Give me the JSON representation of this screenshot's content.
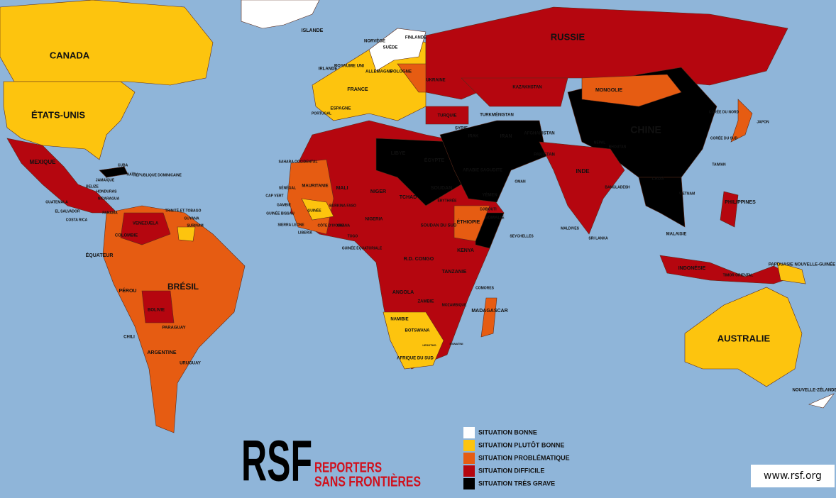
{
  "map": {
    "countries": [
      "CANADA",
      "ÉTATS-UNIS",
      "RUSSIE",
      "CHINE",
      "BRÉSIL",
      "AUSTRALIE",
      "ISLANDE",
      "NORVÈGE",
      "SUÈDE",
      "FINLANDE",
      "ROYAUME UNI",
      "IRLANDE",
      "ALLEMAGNE",
      "POLOGNE",
      "UKRAINE",
      "FRANCE",
      "ESPAGNE",
      "PORTUGAL",
      "TURQUIE",
      "KAZAKHSTAN",
      "MONGOLIE",
      "TURKMÉNISTAN",
      "SYRIE",
      "IRAK",
      "IRAN",
      "AFGHANISTAN",
      "PAKISTAN",
      "NÉPAL",
      "BHOUTAN",
      "INDE",
      "BANGLADESH",
      "LAOS",
      "VIETNAM",
      "CORÉE DU NORD",
      "CORÉE DU SUD",
      "JAPON",
      "TAIWAN",
      "PHILIPPINES",
      "MALAISIE",
      "INDONÉSIE",
      "SRI LANKA",
      "MALDIVES",
      "TIMOR ORIENTAL",
      "PAPOUASIE NOUVELLE-GUINÉE",
      "NOUVELLE-ZÉLANDE",
      "LIBYE",
      "ÉGYPTE",
      "ARABIE SAOUDITE",
      "YÉMEN",
      "OMAN",
      "SOUDAN",
      "ÉRYTHRÉE",
      "DJIBOUTI",
      "SOMALIE",
      "ÉTHIOPIE",
      "KENYA",
      "TANZANIE",
      "R.D. CONGO",
      "ANGOLA",
      "ZAMBIE",
      "MOZAMBIQUE",
      "MADAGASCAR",
      "NAMIBIE",
      "BOTSWANA",
      "AFRIQUE DU SUD",
      "LESOTHO",
      "ESWATINI",
      "COMORES",
      "SEYCHELLES",
      "NIGER",
      "TCHAD",
      "MALI",
      "MAURITANIE",
      "SÉNÉGAL",
      "CAP VERT",
      "GAMBIE",
      "GUINÉE BISSAU",
      "GUINÉE",
      "SIERRA LEONE",
      "LIBERIA",
      "CÔTE D'IVOIRE",
      "GHANA",
      "TOGO",
      "BURKINA FASO",
      "NIGERIA",
      "SOUDAN DU SUD",
      "GUINÉE ÉQUATORIALE",
      "SAHARA OCCIDENTAL",
      "MEXIQUE",
      "CUBA",
      "HAÏTI",
      "RÉPUBLIQUE DOMINICAINE",
      "JAMAÏQUE",
      "BELIZE",
      "HONDURAS",
      "NICARAGUA",
      "GUATEMALA",
      "EL SALVADOR",
      "COSTA RICA",
      "PANAMA",
      "TRINITÉ-ET-TOBAGO",
      "GUYANA",
      "SURINAM",
      "VENEZUELA",
      "COLOMBIE",
      "ÉQUATEUR",
      "PÉROU",
      "BOLIVIE",
      "PARAGUAY",
      "CHILI",
      "ARGENTINE",
      "URUGUAY"
    ],
    "legend": {
      "items": [
        {
          "label": "SITUATION BONNE",
          "color": "#ffffff"
        },
        {
          "label": "SITUATION PLUTÔT BONNE",
          "color": "#fdc40e"
        },
        {
          "label": "SITUATION PROBLÉMATIQUE",
          "color": "#e65c12"
        },
        {
          "label": "SITUATION DIFFICILE",
          "color": "#b5060f"
        },
        {
          "label": "SITUATION TRÈS GRAVE",
          "color": "#000000"
        }
      ]
    },
    "logo": {
      "mark": "RSF",
      "name_line1": "REPORTERS",
      "name_line2": "SANS FRONTIÈRES"
    },
    "url": "www.rsf.org"
  }
}
